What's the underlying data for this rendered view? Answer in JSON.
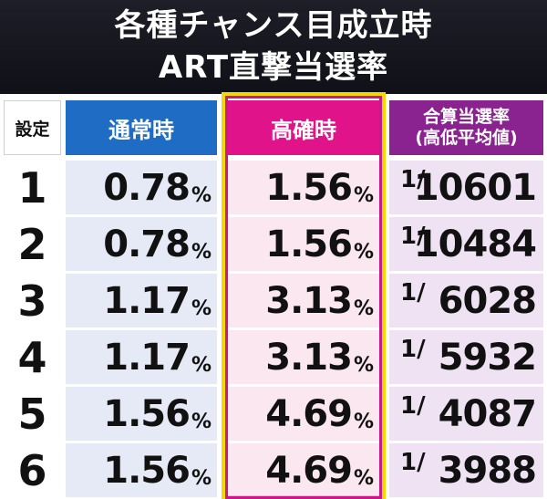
{
  "title": {
    "line1": "各種チャンス目成立時",
    "line2": "ART直撃当選率"
  },
  "headers": {
    "setting": "設定",
    "normal": "通常時",
    "high": "高確時",
    "total_line1": "合算当選率",
    "total_line2": "(高低平均値)"
  },
  "rows": [
    {
      "setting": "1",
      "normal": "0.78",
      "high": "1.56",
      "total": "10601"
    },
    {
      "setting": "2",
      "normal": "0.78",
      "high": "1.56",
      "total": "10484"
    },
    {
      "setting": "3",
      "normal": "1.17",
      "high": "3.13",
      "total": "6028"
    },
    {
      "setting": "4",
      "normal": "1.17",
      "high": "3.13",
      "total": "5932"
    },
    {
      "setting": "5",
      "normal": "1.56",
      "high": "4.69",
      "total": "4087"
    },
    {
      "setting": "6",
      "normal": "1.56",
      "high": "4.69",
      "total": "3988"
    }
  ],
  "units": {
    "percent": "%",
    "fraction": "1/"
  },
  "colors": {
    "normal_header": "#1f6cc4",
    "high_header": "#e0138b",
    "total_header": "#8a2290",
    "highlight_border": "#f4d800"
  }
}
